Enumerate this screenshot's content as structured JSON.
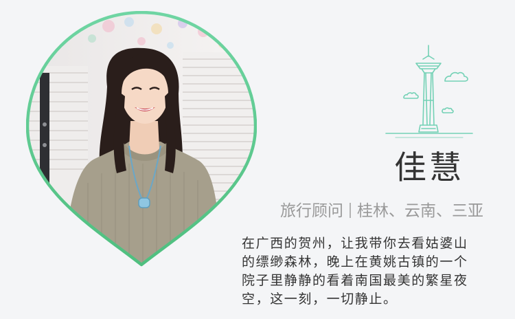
{
  "profile": {
    "name": "佳慧",
    "role": "旅行顾问",
    "regions": "桂林、云南、三亚",
    "bio": "在广西的贺州，让我带你去看姑婆山的缥缈森林，晚上在黄姚古镇的一个院子里静静的看着南国最美的繁星夜空，这一刻，一切静止。"
  },
  "icons": {
    "portrait": "advisor-portrait-pin",
    "landmark": "space-needle-tower-icon"
  },
  "colors": {
    "accent_green": "#5fc98e",
    "icon_teal": "#73d1b5",
    "background": "#f4f5f7",
    "text_dark": "#333333",
    "text_gray": "#999999"
  }
}
